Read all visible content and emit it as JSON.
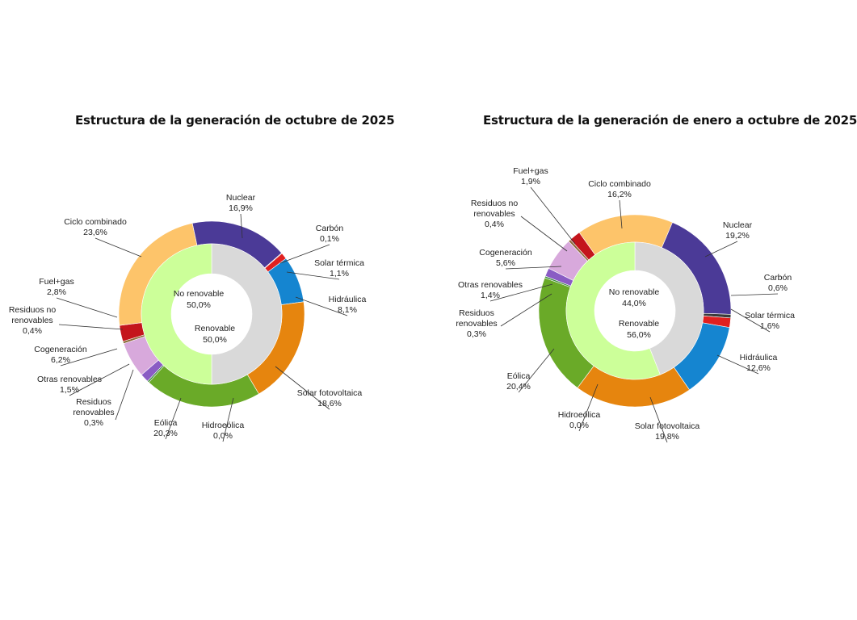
{
  "chart_data": [
    {
      "type": "donut",
      "title": "Estructura de la generación de octubre de 2025",
      "start_angle_deg": 348,
      "outer_ring": [
        {
          "name": "Nuclear",
          "value": 16.9,
          "label": "16,9%",
          "color": "#4b3a97"
        },
        {
          "name": "Carbón",
          "value": 0.1,
          "label": "0,1%",
          "color": "#3b3b3b"
        },
        {
          "name": "Solar térmica",
          "value": 1.1,
          "label": "1,1%",
          "color": "#e02020"
        },
        {
          "name": "Hidráulica",
          "value": 8.1,
          "label": "8,1%",
          "color": "#1585d0"
        },
        {
          "name": "Solar fotovoltaica",
          "value": 18.6,
          "label": "18,6%",
          "color": "#e6850e"
        },
        {
          "name": "Hidroeólica",
          "value": 0.0,
          "label": "0,0%",
          "color": "#2f7d1e"
        },
        {
          "name": "Eólica",
          "value": 20.3,
          "label": "20,3%",
          "color": "#6aaa28"
        },
        {
          "name": "Residuos renovables",
          "value": 0.3,
          "label": "0,3%",
          "color": "#3d8a3d"
        },
        {
          "name": "Otras renovables",
          "value": 1.5,
          "label": "1,5%",
          "color": "#8a5cc4"
        },
        {
          "name": "Cogeneración",
          "value": 6.2,
          "label": "6,2%",
          "color": "#d8a9dc"
        },
        {
          "name": "Residuos no renovables",
          "value": 0.4,
          "label": "0,4%",
          "color": "#8c6a3a"
        },
        {
          "name": "Fuel+gas",
          "value": 2.8,
          "label": "2,8%",
          "color": "#c4151c"
        },
        {
          "name": "Ciclo combinado",
          "value": 23.6,
          "label": "23,6%",
          "color": "#fdc46a"
        }
      ],
      "inner_ring": [
        {
          "name": "No renovable",
          "value": 50.0,
          "label": "50,0%",
          "color": "#d9d9d9"
        },
        {
          "name": "Renovable",
          "value": 50.0,
          "label": "50,0%",
          "color": "#ccff99"
        }
      ]
    },
    {
      "type": "donut",
      "title": "Estructura de la generación de enero a octubre de 2025",
      "start_angle_deg": 23,
      "outer_ring": [
        {
          "name": "Nuclear",
          "value": 19.2,
          "label": "19,2%",
          "color": "#4b3a97"
        },
        {
          "name": "Carbón",
          "value": 0.6,
          "label": "0,6%",
          "color": "#3b3b3b"
        },
        {
          "name": "Solar térmica",
          "value": 1.6,
          "label": "1,6%",
          "color": "#e02020"
        },
        {
          "name": "Hidráulica",
          "value": 12.6,
          "label": "12,6%",
          "color": "#1585d0"
        },
        {
          "name": "Solar fotovoltaica",
          "value": 19.8,
          "label": "19,8%",
          "color": "#e6850e"
        },
        {
          "name": "Hidroeólica",
          "value": 0.0,
          "label": "0,0%",
          "color": "#2f7d1e"
        },
        {
          "name": "Eólica",
          "value": 20.4,
          "label": "20,4%",
          "color": "#6aaa28"
        },
        {
          "name": "Residuos renovables",
          "value": 0.3,
          "label": "0,3%",
          "color": "#3d8a3d"
        },
        {
          "name": "Otras renovables",
          "value": 1.4,
          "label": "1,4%",
          "color": "#8a5cc4"
        },
        {
          "name": "Cogeneración",
          "value": 5.6,
          "label": "5,6%",
          "color": "#d8a9dc"
        },
        {
          "name": "Residuos no renovables",
          "value": 0.4,
          "label": "0,4%",
          "color": "#8c6a3a"
        },
        {
          "name": "Fuel+gas",
          "value": 1.9,
          "label": "1,9%",
          "color": "#c4151c"
        },
        {
          "name": "Ciclo combinado",
          "value": 16.2,
          "label": "16,2%",
          "color": "#fdc46a"
        }
      ],
      "inner_ring": [
        {
          "name": "No renovable",
          "value": 44.0,
          "label": "44,0%",
          "color": "#d9d9d9"
        },
        {
          "name": "Renovable",
          "value": 56.0,
          "label": "56,0%",
          "color": "#ccff99"
        }
      ]
    }
  ]
}
